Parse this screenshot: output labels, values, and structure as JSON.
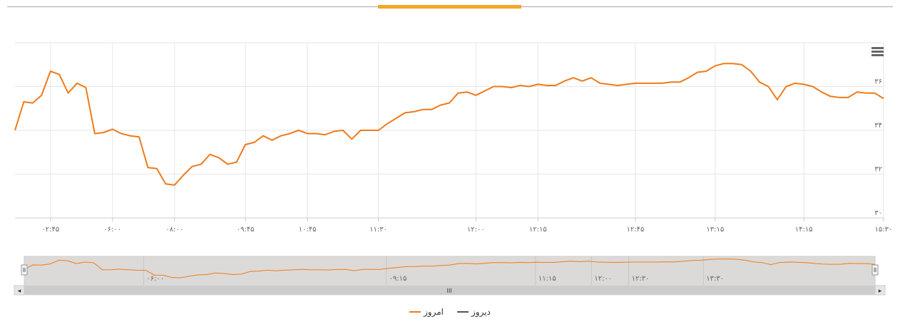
{
  "tab": {
    "active_color": "#f5a623"
  },
  "menu_icon": "hamburger-icon",
  "colors": {
    "today": "#f07a1a",
    "yesterday": "#555555",
    "grid": "#e6e6e6",
    "navigator_mask": "#dcdad8"
  },
  "legend": {
    "today": "امروز",
    "yesterday": "دیروز"
  },
  "navigator": {
    "ticks": [
      {
        "t": 6.0,
        "label": "۰۶:۰۰"
      },
      {
        "t": 9.25,
        "label": "۰۹:۱۵"
      },
      {
        "t": 11.25,
        "label": "۱۱:۱۵"
      },
      {
        "t": 12.0,
        "label": "۱۲:۰۰"
      },
      {
        "t": 12.5,
        "label": "۱۲:۳۰"
      },
      {
        "t": 13.5,
        "label": "۱۳:۳۰"
      }
    ],
    "range": [
      4.4,
      15.8
    ],
    "scrollbar_grip": "III",
    "scroll_left": "◂",
    "scroll_right": "▸"
  },
  "chart_data": {
    "type": "line",
    "series": [
      {
        "name": "امروز",
        "points": [
          [
            0,
            34.0
          ],
          [
            1,
            35.3
          ],
          [
            2,
            35.25
          ],
          [
            3,
            35.6
          ],
          [
            4,
            36.7
          ],
          [
            5,
            36.55
          ],
          [
            6,
            35.7
          ],
          [
            7,
            36.15
          ],
          [
            8,
            35.95
          ],
          [
            9,
            33.85
          ],
          [
            10,
            33.9
          ],
          [
            11,
            34.05
          ],
          [
            12,
            33.85
          ],
          [
            13,
            33.75
          ],
          [
            14,
            33.7
          ],
          [
            15,
            32.3
          ],
          [
            16,
            32.25
          ],
          [
            17,
            31.55
          ],
          [
            18,
            31.5
          ],
          [
            19,
            31.95
          ],
          [
            20,
            32.35
          ],
          [
            21,
            32.45
          ],
          [
            22,
            32.9
          ],
          [
            23,
            32.75
          ],
          [
            24,
            32.45
          ],
          [
            25,
            32.55
          ],
          [
            26,
            33.35
          ],
          [
            27,
            33.45
          ],
          [
            28,
            33.75
          ],
          [
            29,
            33.55
          ],
          [
            30,
            33.75
          ],
          [
            31,
            33.85
          ],
          [
            32,
            34.0
          ],
          [
            33,
            33.85
          ],
          [
            34,
            33.85
          ],
          [
            35,
            33.8
          ],
          [
            36,
            33.95
          ],
          [
            37,
            34.0
          ],
          [
            38,
            33.6
          ],
          [
            39,
            34.0
          ],
          [
            40,
            34.0
          ],
          [
            41,
            34.0
          ],
          [
            42,
            34.3
          ],
          [
            43,
            34.55
          ],
          [
            44,
            34.8
          ],
          [
            45,
            34.85
          ],
          [
            46,
            34.95
          ],
          [
            47,
            34.95
          ],
          [
            48,
            35.15
          ],
          [
            49,
            35.25
          ],
          [
            50,
            35.7
          ],
          [
            51,
            35.75
          ],
          [
            52,
            35.6
          ],
          [
            53,
            35.8
          ],
          [
            54,
            36.0
          ],
          [
            55,
            36.0
          ],
          [
            56,
            35.95
          ],
          [
            57,
            36.05
          ],
          [
            58,
            36.0
          ],
          [
            59,
            36.1
          ],
          [
            60,
            36.05
          ],
          [
            61,
            36.05
          ],
          [
            62,
            36.25
          ],
          [
            63,
            36.4
          ],
          [
            64,
            36.25
          ],
          [
            65,
            36.4
          ],
          [
            66,
            36.15
          ],
          [
            67,
            36.1
          ],
          [
            68,
            36.05
          ],
          [
            69,
            36.1
          ],
          [
            70,
            36.15
          ],
          [
            71,
            36.15
          ],
          [
            72,
            36.15
          ],
          [
            73,
            36.15
          ],
          [
            74,
            36.2
          ],
          [
            75,
            36.2
          ],
          [
            76,
            36.4
          ],
          [
            77,
            36.65
          ],
          [
            78,
            36.7
          ],
          [
            79,
            36.95
          ],
          [
            80,
            37.05
          ],
          [
            81,
            37.05
          ],
          [
            82,
            37.0
          ],
          [
            83,
            36.7
          ],
          [
            84,
            36.2
          ],
          [
            85,
            36.0
          ],
          [
            86,
            35.4
          ],
          [
            87,
            36.0
          ],
          [
            88,
            36.15
          ],
          [
            89,
            36.1
          ],
          [
            90,
            36.0
          ],
          [
            91,
            35.75
          ],
          [
            92,
            35.55
          ],
          [
            93,
            35.5
          ],
          [
            94,
            35.5
          ],
          [
            95,
            35.75
          ],
          [
            96,
            35.7
          ],
          [
            97,
            35.7
          ],
          [
            98,
            35.45
          ]
        ]
      }
    ],
    "yticks": [
      {
        "v": 30,
        "label": "۳۰"
      },
      {
        "v": 32,
        "label": "۳۲"
      },
      {
        "v": 34,
        "label": "۳۴"
      },
      {
        "v": 36,
        "label": "۳۶"
      }
    ],
    "xticks": [
      {
        "i": 4,
        "label": "۰۲:۴۵"
      },
      {
        "i": 11,
        "label": "۰۶:۰۰"
      },
      {
        "i": 18,
        "label": "۰۸:۰۰"
      },
      {
        "i": 26,
        "label": "۰۹:۴۵"
      },
      {
        "i": 33,
        "label": "۱۰:۴۵"
      },
      {
        "i": 41,
        "label": "۱۱:۳۰"
      },
      {
        "i": 52,
        "label": "۱۲:۰۰"
      },
      {
        "i": 59,
        "label": "۱۲:۱۵"
      },
      {
        "i": 70,
        "label": "۱۲:۴۵"
      },
      {
        "i": 79,
        "label": "۱۳:۱۵"
      },
      {
        "i": 89,
        "label": "۱۴:۱۵"
      },
      {
        "i": 98,
        "label": "۱۵:۳۰"
      }
    ],
    "ylim": [
      30,
      38
    ],
    "xlim": [
      0,
      98
    ],
    "grid": true,
    "legend_position": "bottom-center"
  }
}
